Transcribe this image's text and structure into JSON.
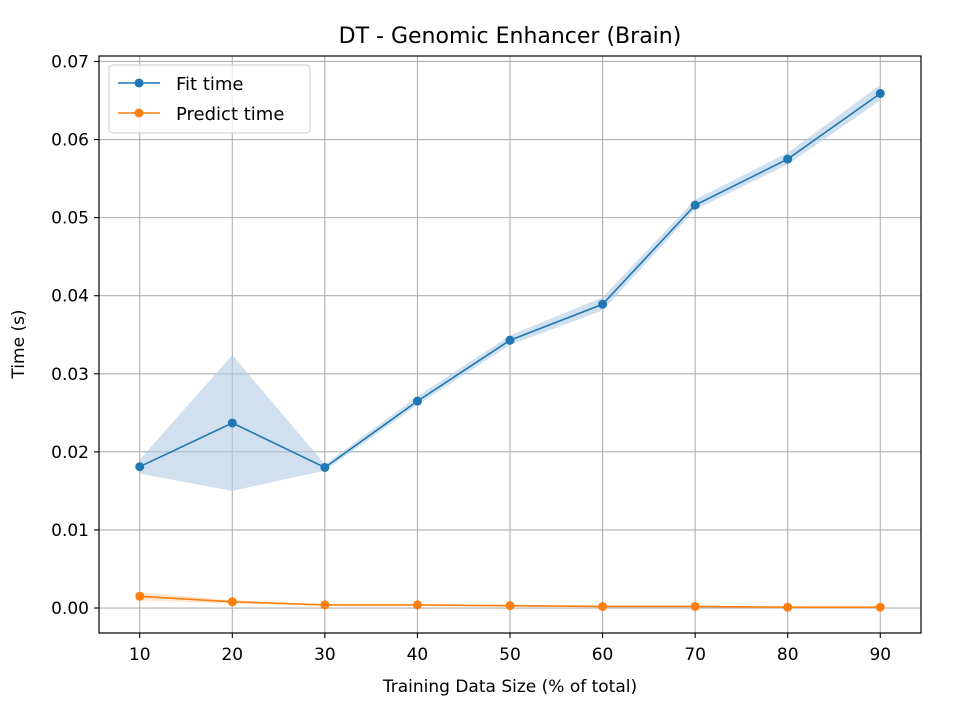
{
  "chart_data": {
    "type": "line",
    "title": "DT - Genomic Enhancer (Brain)",
    "xlabel": "Training Data Size (% of total)",
    "ylabel": "Time (s)",
    "x": [
      10,
      20,
      30,
      40,
      50,
      60,
      70,
      80,
      90
    ],
    "xlim": [
      5.6,
      94.4
    ],
    "ylim": [
      -0.0032,
      0.0707
    ],
    "xticks": [
      "10",
      "20",
      "30",
      "40",
      "50",
      "60",
      "70",
      "80",
      "90"
    ],
    "yticks": [
      "0.00",
      "0.01",
      "0.02",
      "0.03",
      "0.04",
      "0.05",
      "0.06",
      "0.07"
    ],
    "grid": true,
    "legend_position": "upper-left",
    "series": [
      {
        "name": "Fit time",
        "color": "#1f77b4",
        "band_color": "#b0cce3",
        "values": [
          0.0181,
          0.0237,
          0.018,
          0.0265,
          0.0343,
          0.0389,
          0.0516,
          0.0575,
          0.0659
        ],
        "lower": [
          0.0172,
          0.015,
          0.0176,
          0.026,
          0.0337,
          0.0381,
          0.051,
          0.0568,
          0.065
        ],
        "upper": [
          0.019,
          0.0324,
          0.0184,
          0.0271,
          0.0349,
          0.0398,
          0.0523,
          0.0583,
          0.067
        ]
      },
      {
        "name": "Predict time",
        "color": "#ff7f0e",
        "band_color": "#ffd2aa",
        "values": [
          0.0015,
          0.0008,
          0.0004,
          0.0004,
          0.0003,
          0.0002,
          0.0002,
          0.0001,
          0.0001
        ],
        "lower": [
          0.001,
          0.0006,
          0.0003,
          0.0003,
          0.0002,
          0.0001,
          0.0001,
          0.0,
          0.0
        ],
        "upper": [
          0.002,
          0.001,
          0.0005,
          0.0005,
          0.0004,
          0.0003,
          0.0003,
          0.0002,
          0.0002
        ]
      }
    ]
  }
}
